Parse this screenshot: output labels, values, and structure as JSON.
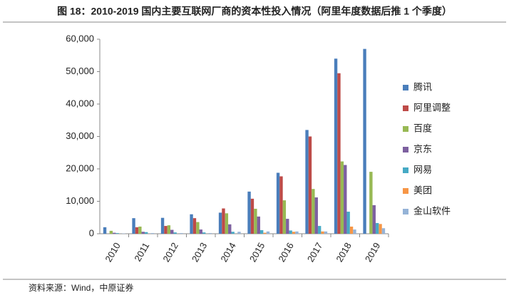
{
  "chart_data": {
    "type": "bar",
    "title": "图 18：2010-2019 国内主要互联网厂商的资本性投入情况（阿里年度数据后推 1 个季度）",
    "source": "资料来源：Wind，中原证券",
    "categories": [
      "2010",
      "2011",
      "2012",
      "2013",
      "2014",
      "2015",
      "2016",
      "2017",
      "2018",
      "2019"
    ],
    "series": [
      {
        "name": "腾讯",
        "color": "#4a7ebb",
        "values": [
          2000,
          4800,
          4900,
          6000,
          6500,
          13000,
          18800,
          32000,
          54000,
          57000
        ]
      },
      {
        "name": "阿里调整",
        "color": "#be4b48",
        "values": [
          null,
          2000,
          2400,
          4800,
          7800,
          10800,
          17700,
          30000,
          49500,
          null
        ]
      },
      {
        "name": "百度",
        "color": "#98b954",
        "values": [
          900,
          2200,
          2600,
          3600,
          6300,
          7700,
          10300,
          13800,
          22300,
          19100
        ]
      },
      {
        "name": "京东",
        "color": "#7d60a0",
        "values": [
          300,
          600,
          1200,
          1300,
          2900,
          5300,
          4600,
          11200,
          21200,
          8800
        ]
      },
      {
        "name": "网易",
        "color": "#46aac5",
        "values": [
          200,
          500,
          400,
          400,
          600,
          1100,
          1000,
          2400,
          6800,
          3300
        ]
      },
      {
        "name": "美团",
        "color": "#f79646",
        "values": [
          null,
          null,
          null,
          null,
          null,
          300,
          600,
          700,
          2200,
          3000
        ]
      },
      {
        "name": "金山软件",
        "color": "#95b3d7",
        "values": [
          100,
          200,
          200,
          200,
          600,
          700,
          700,
          700,
          1300,
          1700
        ]
      }
    ],
    "ylim": [
      0,
      60000
    ],
    "yticks": [
      0,
      {
        "value": 10000,
        "label": "10,000"
      },
      {
        "value": 20000,
        "label": "20,000"
      },
      {
        "value": 30000,
        "label": "30,000"
      },
      {
        "value": 40000,
        "label": "40,000"
      },
      {
        "value": 50000,
        "label": "50,000"
      },
      {
        "value": 60000,
        "label": "60,000"
      }
    ],
    "legend": "right"
  }
}
